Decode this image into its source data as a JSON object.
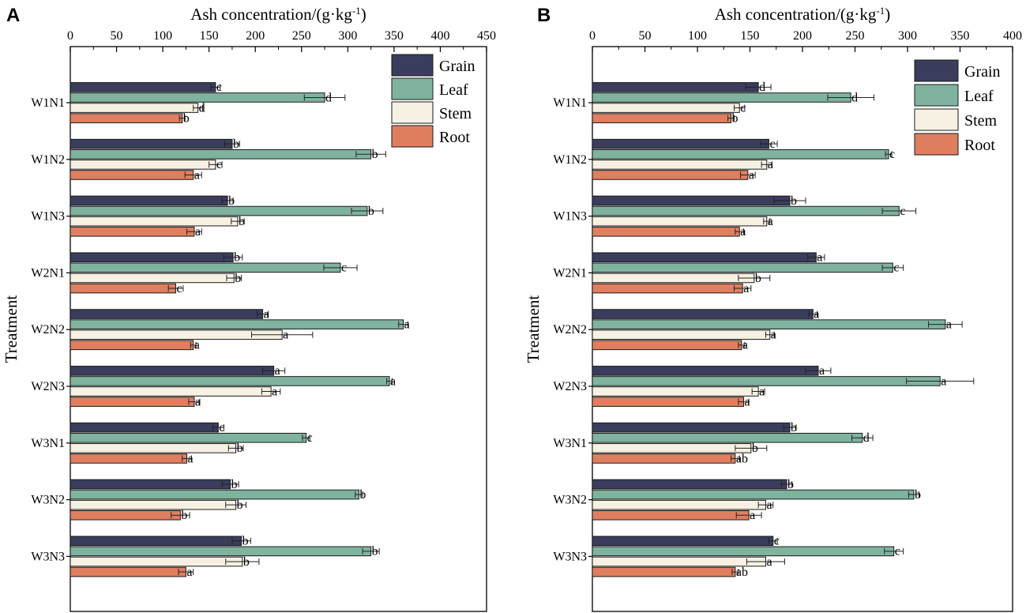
{
  "colors": {
    "Grain": "#3a3d5c",
    "Leaf": "#7fb39e",
    "Stem": "#f6f1e2",
    "Root": "#e07f5f",
    "axis": "#000000",
    "bar_outline": "#1a1a1a"
  },
  "chart_data": [
    {
      "type": "bar",
      "orientation": "horizontal",
      "panel": "A",
      "xlabel": "Ash concentration/(g·kg",
      "xlabel_sup": "-1",
      "xlabel_tail": ")",
      "ylabel": "Treatment",
      "xlim": [
        0,
        450
      ],
      "ticks": [
        0,
        50,
        100,
        150,
        200,
        250,
        300,
        350,
        400,
        450
      ],
      "legend": [
        "Grain",
        "Leaf",
        "Stem",
        "Root"
      ],
      "legend_position": "top-right",
      "categories": [
        "W1N1",
        "W1N2",
        "W1N3",
        "W2N1",
        "W2N2",
        "W2N3",
        "W3N1",
        "W3N2",
        "W3N3"
      ],
      "series": [
        {
          "name": "Grain",
          "values": [
            157,
            175,
            170,
            176,
            208,
            220,
            160,
            173,
            185
          ],
          "errors": [
            5,
            8,
            6,
            10,
            6,
            12,
            6,
            9,
            10
          ],
          "sig": [
            "c",
            "b",
            "b",
            "b",
            "a",
            "a",
            "c",
            "b",
            "b"
          ]
        },
        {
          "name": "Leaf",
          "values": [
            275,
            325,
            321,
            292,
            360,
            345,
            255,
            312,
            325
          ],
          "errors": [
            22,
            16,
            17,
            18,
            5,
            3,
            4,
            4,
            9
          ],
          "sig": [
            "d",
            "b",
            "b",
            "c",
            "a",
            "a",
            "c",
            "b",
            "b"
          ]
        },
        {
          "name": "Stem",
          "values": [
            138,
            157,
            181,
            177,
            229,
            217,
            179,
            179,
            186
          ],
          "errors": [
            5,
            7,
            7,
            8,
            33,
            10,
            8,
            11,
            18
          ],
          "sig": [
            "d",
            "c",
            "b",
            "b",
            "a",
            "a",
            "b",
            "b",
            "b"
          ]
        },
        {
          "name": "Root",
          "values": [
            121,
            133,
            134,
            114,
            133,
            134,
            126,
            119,
            125
          ],
          "errors": [
            3,
            9,
            8,
            8,
            3,
            6,
            5,
            10,
            8
          ],
          "sig": [
            "b",
            "a",
            "a",
            "c",
            "a",
            "a",
            "a",
            "b",
            "a"
          ]
        }
      ]
    },
    {
      "type": "bar",
      "orientation": "horizontal",
      "panel": "B",
      "xlabel": "Ash concentration/(g·kg",
      "xlabel_sup": "-1",
      "xlabel_tail": ")",
      "ylabel": "Treatment",
      "xlim": [
        0,
        400
      ],
      "ticks": [
        0,
        50,
        100,
        150,
        200,
        250,
        300,
        350,
        400
      ],
      "legend": [
        "Grain",
        "Leaf",
        "Stem",
        "Root"
      ],
      "legend_position": "top-right",
      "categories": [
        "W1N1",
        "W1N2",
        "W1N3",
        "W2N1",
        "W2N2",
        "W2N3",
        "W3N1",
        "W3N2",
        "W3N3"
      ],
      "series": [
        {
          "name": "Grain",
          "values": [
            158,
            168,
            188,
            213,
            210,
            215,
            188,
            185,
            172
          ],
          "errors": [
            12,
            8,
            15,
            8,
            4,
            12,
            6,
            5,
            4
          ],
          "sig": [
            "d",
            "c",
            "b",
            "a",
            "a",
            "a",
            "b",
            "b",
            "c"
          ]
        },
        {
          "name": "Leaf",
          "values": [
            246,
            282,
            292,
            286,
            336,
            331,
            257,
            306,
            287
          ],
          "errors": [
            22,
            3,
            16,
            10,
            16,
            32,
            10,
            5,
            9
          ],
          "sig": [
            "d",
            "c",
            "c",
            "c",
            "a",
            "a",
            "d",
            "b",
            "c"
          ]
        },
        {
          "name": "Stem",
          "values": [
            140,
            166,
            166,
            154,
            169,
            158,
            151,
            165,
            165
          ],
          "errors": [
            5,
            5,
            3,
            15,
            4,
            6,
            15,
            7,
            18
          ],
          "sig": [
            "c",
            "a",
            "a",
            "b",
            "a",
            "a",
            "b",
            "a",
            "a"
          ]
        },
        {
          "name": "Root",
          "values": [
            132,
            148,
            140,
            143,
            142,
            144,
            136,
            149,
            136
          ],
          "errors": [
            3,
            7,
            4,
            8,
            3,
            5,
            4,
            12,
            3
          ],
          "sig": [
            "b",
            "a",
            "a",
            "a",
            "a",
            "a",
            "ab",
            "a",
            "ab"
          ]
        }
      ]
    }
  ]
}
